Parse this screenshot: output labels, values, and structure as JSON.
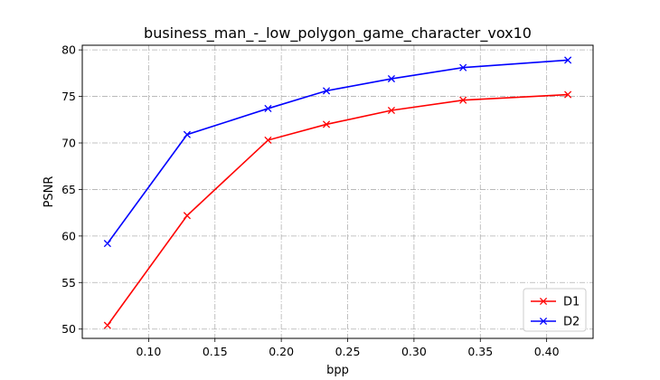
{
  "chart_data": {
    "type": "line",
    "title": "business_man_-_low_polygon_game_character_vox10",
    "xlabel": "bpp",
    "ylabel": "PSNR",
    "xlim": [
      0.05,
      0.435
    ],
    "ylim": [
      49,
      80.5
    ],
    "xticks": [
      0.1,
      0.15,
      0.2,
      0.25,
      0.3,
      0.35,
      0.4
    ],
    "xtick_labels": [
      "0.10",
      "0.15",
      "0.20",
      "0.25",
      "0.30",
      "0.35",
      "0.40"
    ],
    "yticks": [
      50,
      55,
      60,
      65,
      70,
      75,
      80
    ],
    "ytick_labels": [
      "50",
      "55",
      "60",
      "65",
      "70",
      "75",
      "80"
    ],
    "grid": true,
    "legend_position": "bottom-right",
    "series": [
      {
        "name": "D1",
        "color": "#ff0000",
        "marker": "x",
        "x": [
          0.069,
          0.129,
          0.19,
          0.234,
          0.283,
          0.337,
          0.416
        ],
        "y": [
          50.4,
          62.2,
          70.3,
          72.0,
          73.5,
          74.6,
          75.2
        ]
      },
      {
        "name": "D2",
        "color": "#0000ff",
        "marker": "x",
        "x": [
          0.069,
          0.129,
          0.19,
          0.234,
          0.283,
          0.337,
          0.416
        ],
        "y": [
          59.2,
          70.9,
          73.7,
          75.6,
          76.9,
          78.1,
          78.9
        ]
      }
    ]
  }
}
